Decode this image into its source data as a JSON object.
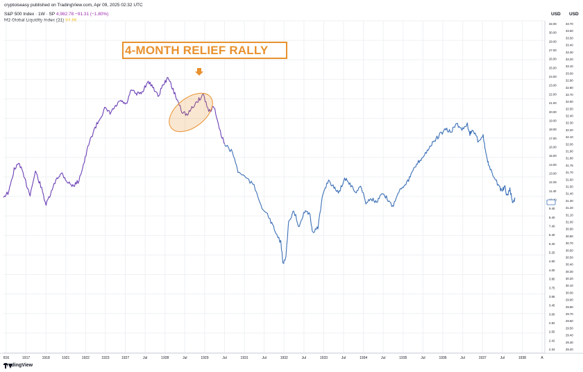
{
  "header": {
    "publisher": "cryptoiseasy published on TradingView.com, Apr 09, 2025 02:32 UTC"
  },
  "legend": {
    "sp_label": "S&P 500 Index · 1W · SP",
    "sp_value": "4,982.78",
    "sp_change": "−91.31 (−1.80%)",
    "m2_label": "M2 Global Liquidity Index (21)",
    "m2_value": "94.86"
  },
  "annotation": {
    "text": "4-MONTH RELIEF RALLY"
  },
  "footer": {
    "brand": "TradingView"
  },
  "colors": {
    "sp": "#6a3fb5",
    "m2": "#3b6fb6",
    "accent": "#e8912f",
    "grid": "#eef0f3"
  },
  "chart_data": {
    "type": "line",
    "currency_labels": [
      "USD",
      "USD"
    ],
    "x_ticks": [
      "816",
      "1917",
      "1918",
      "1921",
      "1922",
      "1923",
      "1927",
      "Jul",
      "1928",
      "Jul",
      "1929",
      "Jul",
      "1931",
      "Jul",
      "1932",
      "Jul",
      "1933",
      "Jul",
      "1934",
      "Jul",
      "1935",
      "Jul",
      "1936",
      "Jul",
      "1937",
      "Jul",
      "1938",
      "A"
    ],
    "y_left_ticks": [
      "32.00",
      "30.00",
      "29.00",
      "27.00",
      "26.00",
      "25.00",
      "24.00",
      "23.00",
      "22.00",
      "21.00",
      "20.00",
      "19.00",
      "18.00",
      "17.00",
      "16.00",
      "15.00",
      "14.00",
      "13.00",
      "12.25",
      "11.40",
      "10.40",
      "9.40",
      "8.40",
      "7.40",
      "6.40",
      "5.40",
      "5.25",
      "4.60",
      "4.00",
      "3.95",
      "3.75",
      "3.55",
      "3.45",
      "3.00",
      "2.82",
      "2.65",
      "2.42",
      "2.34"
    ],
    "y_right_ticks": [
      "33.70",
      "33.60",
      "33.50",
      "33.40",
      "33.30",
      "33.20",
      "33.10",
      "33.00",
      "32.90",
      "32.80",
      "32.70",
      "32.60",
      "32.50",
      "32.40",
      "32.30",
      "32.20",
      "32.10",
      "32.00",
      "31.90",
      "31.80",
      "31.75",
      "31.70",
      "31.60",
      "31.50",
      "31.40",
      "31.30",
      "31.20",
      "31.10",
      "31.00",
      "30.90",
      "30.80",
      "30.70",
      "30.60",
      "30.50",
      "30.40",
      "30.30",
      "30.20",
      "30.10",
      "30.00",
      "29.90",
      "29.80",
      "29.70",
      "29.60",
      "29.50",
      "29.40",
      "29.30",
      "29.20"
    ],
    "series": [
      {
        "name": "S&P 500 Index",
        "color": "#6a3fb5",
        "points": [
          [
            0,
            0.57
          ],
          [
            0.01,
            0.55
          ],
          [
            0.02,
            0.44
          ],
          [
            0.03,
            0.41
          ],
          [
            0.04,
            0.49
          ],
          [
            0.05,
            0.56
          ],
          [
            0.06,
            0.45
          ],
          [
            0.07,
            0.52
          ],
          [
            0.08,
            0.61
          ],
          [
            0.09,
            0.55
          ],
          [
            0.1,
            0.48
          ],
          [
            0.11,
            0.46
          ],
          [
            0.12,
            0.5
          ],
          [
            0.13,
            0.52
          ],
          [
            0.14,
            0.5
          ],
          [
            0.15,
            0.42
          ],
          [
            0.16,
            0.32
          ],
          [
            0.17,
            0.25
          ],
          [
            0.18,
            0.2
          ],
          [
            0.19,
            0.15
          ],
          [
            0.2,
            0.17
          ],
          [
            0.21,
            0.14
          ],
          [
            0.22,
            0.11
          ],
          [
            0.23,
            0.13
          ],
          [
            0.24,
            0.06
          ],
          [
            0.25,
            0.08
          ],
          [
            0.26,
            0.07
          ],
          [
            0.27,
            0.02
          ],
          [
            0.28,
            0.04
          ],
          [
            0.29,
            0.09
          ],
          [
            0.3,
            0.03
          ],
          [
            0.31,
            0.0
          ],
          [
            0.315,
            0.04
          ],
          [
            0.325,
            0.1
          ],
          [
            0.335,
            0.16
          ],
          [
            0.345,
            0.18
          ],
          [
            0.355,
            0.14
          ],
          [
            0.365,
            0.11
          ],
          [
            0.375,
            0.08
          ],
          [
            0.385,
            0.16
          ],
          [
            0.395,
            0.14
          ],
          [
            0.405,
            0.25
          ],
          [
            0.415,
            0.32
          ]
        ]
      },
      {
        "name": "M2 Global Liquidity Index",
        "color": "#3b6fb6",
        "points": [
          [
            0.415,
            0.32
          ],
          [
            0.43,
            0.36
          ],
          [
            0.44,
            0.45
          ],
          [
            0.455,
            0.48
          ],
          [
            0.47,
            0.52
          ],
          [
            0.485,
            0.62
          ],
          [
            0.5,
            0.68
          ],
          [
            0.51,
            0.74
          ],
          [
            0.52,
            0.79
          ],
          [
            0.525,
            0.9
          ],
          [
            0.53,
            0.85
          ],
          [
            0.535,
            0.7
          ],
          [
            0.545,
            0.64
          ],
          [
            0.555,
            0.72
          ],
          [
            0.565,
            0.64
          ],
          [
            0.575,
            0.66
          ],
          [
            0.58,
            0.74
          ],
          [
            0.59,
            0.72
          ],
          [
            0.6,
            0.55
          ],
          [
            0.61,
            0.49
          ],
          [
            0.62,
            0.53
          ],
          [
            0.63,
            0.55
          ],
          [
            0.64,
            0.48
          ],
          [
            0.65,
            0.51
          ],
          [
            0.66,
            0.55
          ],
          [
            0.67,
            0.52
          ],
          [
            0.68,
            0.6
          ],
          [
            0.69,
            0.58
          ],
          [
            0.7,
            0.6
          ],
          [
            0.71,
            0.56
          ],
          [
            0.72,
            0.58
          ],
          [
            0.73,
            0.62
          ],
          [
            0.74,
            0.55
          ],
          [
            0.75,
            0.52
          ],
          [
            0.76,
            0.49
          ],
          [
            0.77,
            0.44
          ],
          [
            0.78,
            0.4
          ],
          [
            0.79,
            0.37
          ],
          [
            0.8,
            0.33
          ],
          [
            0.81,
            0.3
          ],
          [
            0.82,
            0.27
          ],
          [
            0.83,
            0.25
          ],
          [
            0.84,
            0.26
          ],
          [
            0.85,
            0.22
          ],
          [
            0.86,
            0.25
          ],
          [
            0.87,
            0.22
          ],
          [
            0.875,
            0.27
          ],
          [
            0.88,
            0.25
          ],
          [
            0.89,
            0.3
          ],
          [
            0.9,
            0.28
          ],
          [
            0.905,
            0.36
          ],
          [
            0.91,
            0.42
          ],
          [
            0.92,
            0.48
          ],
          [
            0.93,
            0.52
          ],
          [
            0.935,
            0.55
          ],
          [
            0.94,
            0.52
          ],
          [
            0.945,
            0.57
          ],
          [
            0.95,
            0.53
          ],
          [
            0.955,
            0.6
          ],
          [
            0.96,
            0.58
          ]
        ]
      }
    ]
  }
}
